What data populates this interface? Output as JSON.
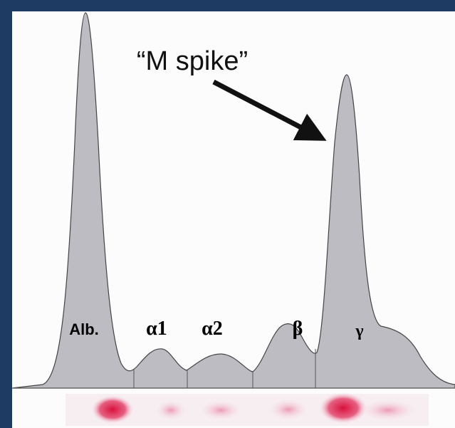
{
  "annotation": "“M spike”",
  "peaks": [
    {
      "label": "Alb."
    },
    {
      "label": "α1"
    },
    {
      "label": "α2"
    },
    {
      "label": "β"
    },
    {
      "label": "γ"
    }
  ]
}
